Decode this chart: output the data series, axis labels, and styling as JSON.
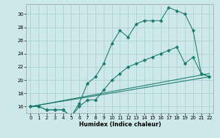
{
  "xlabel": "Humidex (Indice chaleur)",
  "bg_color": "#cde8e8",
  "grid_color": "#aacfcf",
  "line_color": "#1a7a6e",
  "xlim": [
    -0.5,
    22.5
  ],
  "ylim": [
    15.0,
    31.5
  ],
  "xticks": [
    0,
    1,
    2,
    3,
    4,
    5,
    6,
    7,
    8,
    9,
    10,
    11,
    12,
    13,
    14,
    15,
    16,
    17,
    18,
    19,
    20,
    21,
    22
  ],
  "yticks": [
    16,
    18,
    20,
    22,
    24,
    26,
    28,
    30
  ],
  "series": [
    {
      "x": [
        0,
        1,
        2,
        3,
        4,
        5,
        6,
        7,
        8,
        9,
        10,
        11,
        12,
        13,
        14,
        15,
        16,
        17,
        18,
        19,
        20,
        21,
        22
      ],
      "y": [
        16.0,
        16.0,
        15.5,
        15.5,
        15.5,
        14.5,
        16.5,
        19.5,
        20.5,
        22.5,
        25.5,
        27.5,
        26.5,
        28.5,
        29.0,
        29.0,
        29.0,
        31.0,
        30.5,
        30.0,
        27.5,
        21.0,
        20.5
      ],
      "marker": "D",
      "markersize": 2.5
    },
    {
      "x": [
        0,
        1,
        2,
        3,
        4,
        5,
        6,
        7,
        8,
        9,
        10,
        11,
        12,
        13,
        14,
        15,
        16,
        17,
        18,
        19,
        20,
        21,
        22
      ],
      "y": [
        16.0,
        16.0,
        15.5,
        15.5,
        15.5,
        14.5,
        16.0,
        17.0,
        17.0,
        18.5,
        20.0,
        21.0,
        22.0,
        22.5,
        23.0,
        23.5,
        24.0,
        24.5,
        25.0,
        22.5,
        23.5,
        21.0,
        20.5
      ],
      "marker": "D",
      "markersize": 2.5
    },
    {
      "x": [
        0,
        22
      ],
      "y": [
        16.0,
        21.0
      ],
      "marker": null,
      "markersize": 0
    },
    {
      "x": [
        0,
        22
      ],
      "y": [
        16.0,
        20.5
      ],
      "marker": null,
      "markersize": 0
    }
  ]
}
